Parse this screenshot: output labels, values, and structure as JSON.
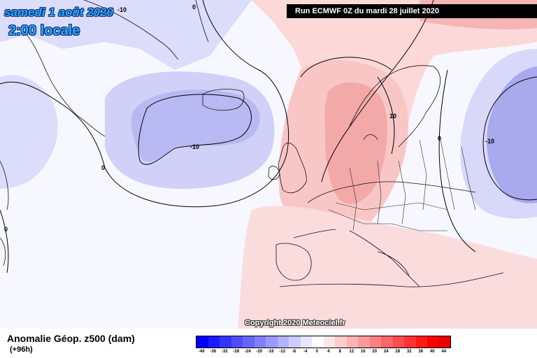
{
  "header": {
    "date": "samedi 1 août 2020",
    "time": "2:00 locale",
    "run": "Run ECMWF 0Z du mardi 28 juillet 2020"
  },
  "copyright": "Copyright 2020 Meteociel.fr",
  "footer": {
    "parameter": "Anomalie Géop. z500 (dam)",
    "lead": "(+96h)"
  },
  "contour_labels": {
    "zero": "0",
    "minus_ten": "-10",
    "plus_ten": "10"
  },
  "legend": {
    "ticks": [
      "-40",
      "-36",
      "-32",
      "-28",
      "-24",
      "-20",
      "-16",
      "-12",
      "-8",
      "-4",
      "0",
      "4",
      "8",
      "12",
      "16",
      "20",
      "24",
      "28",
      "32",
      "36",
      "40",
      "44"
    ],
    "colors": [
      "#0000ff",
      "#1a1aff",
      "#3333ff",
      "#4d4dff",
      "#6666ff",
      "#8080ff",
      "#9999ff",
      "#b3b3ff",
      "#ccccff",
      "#e6e6ff",
      "#ffffff",
      "#ffe6e6",
      "#ffcccc",
      "#ffb3b3",
      "#ff9999",
      "#ff8080",
      "#ff6666",
      "#ff4d4d",
      "#ff3333",
      "#ff1a1a",
      "#ff0000",
      "#e60000"
    ]
  }
}
